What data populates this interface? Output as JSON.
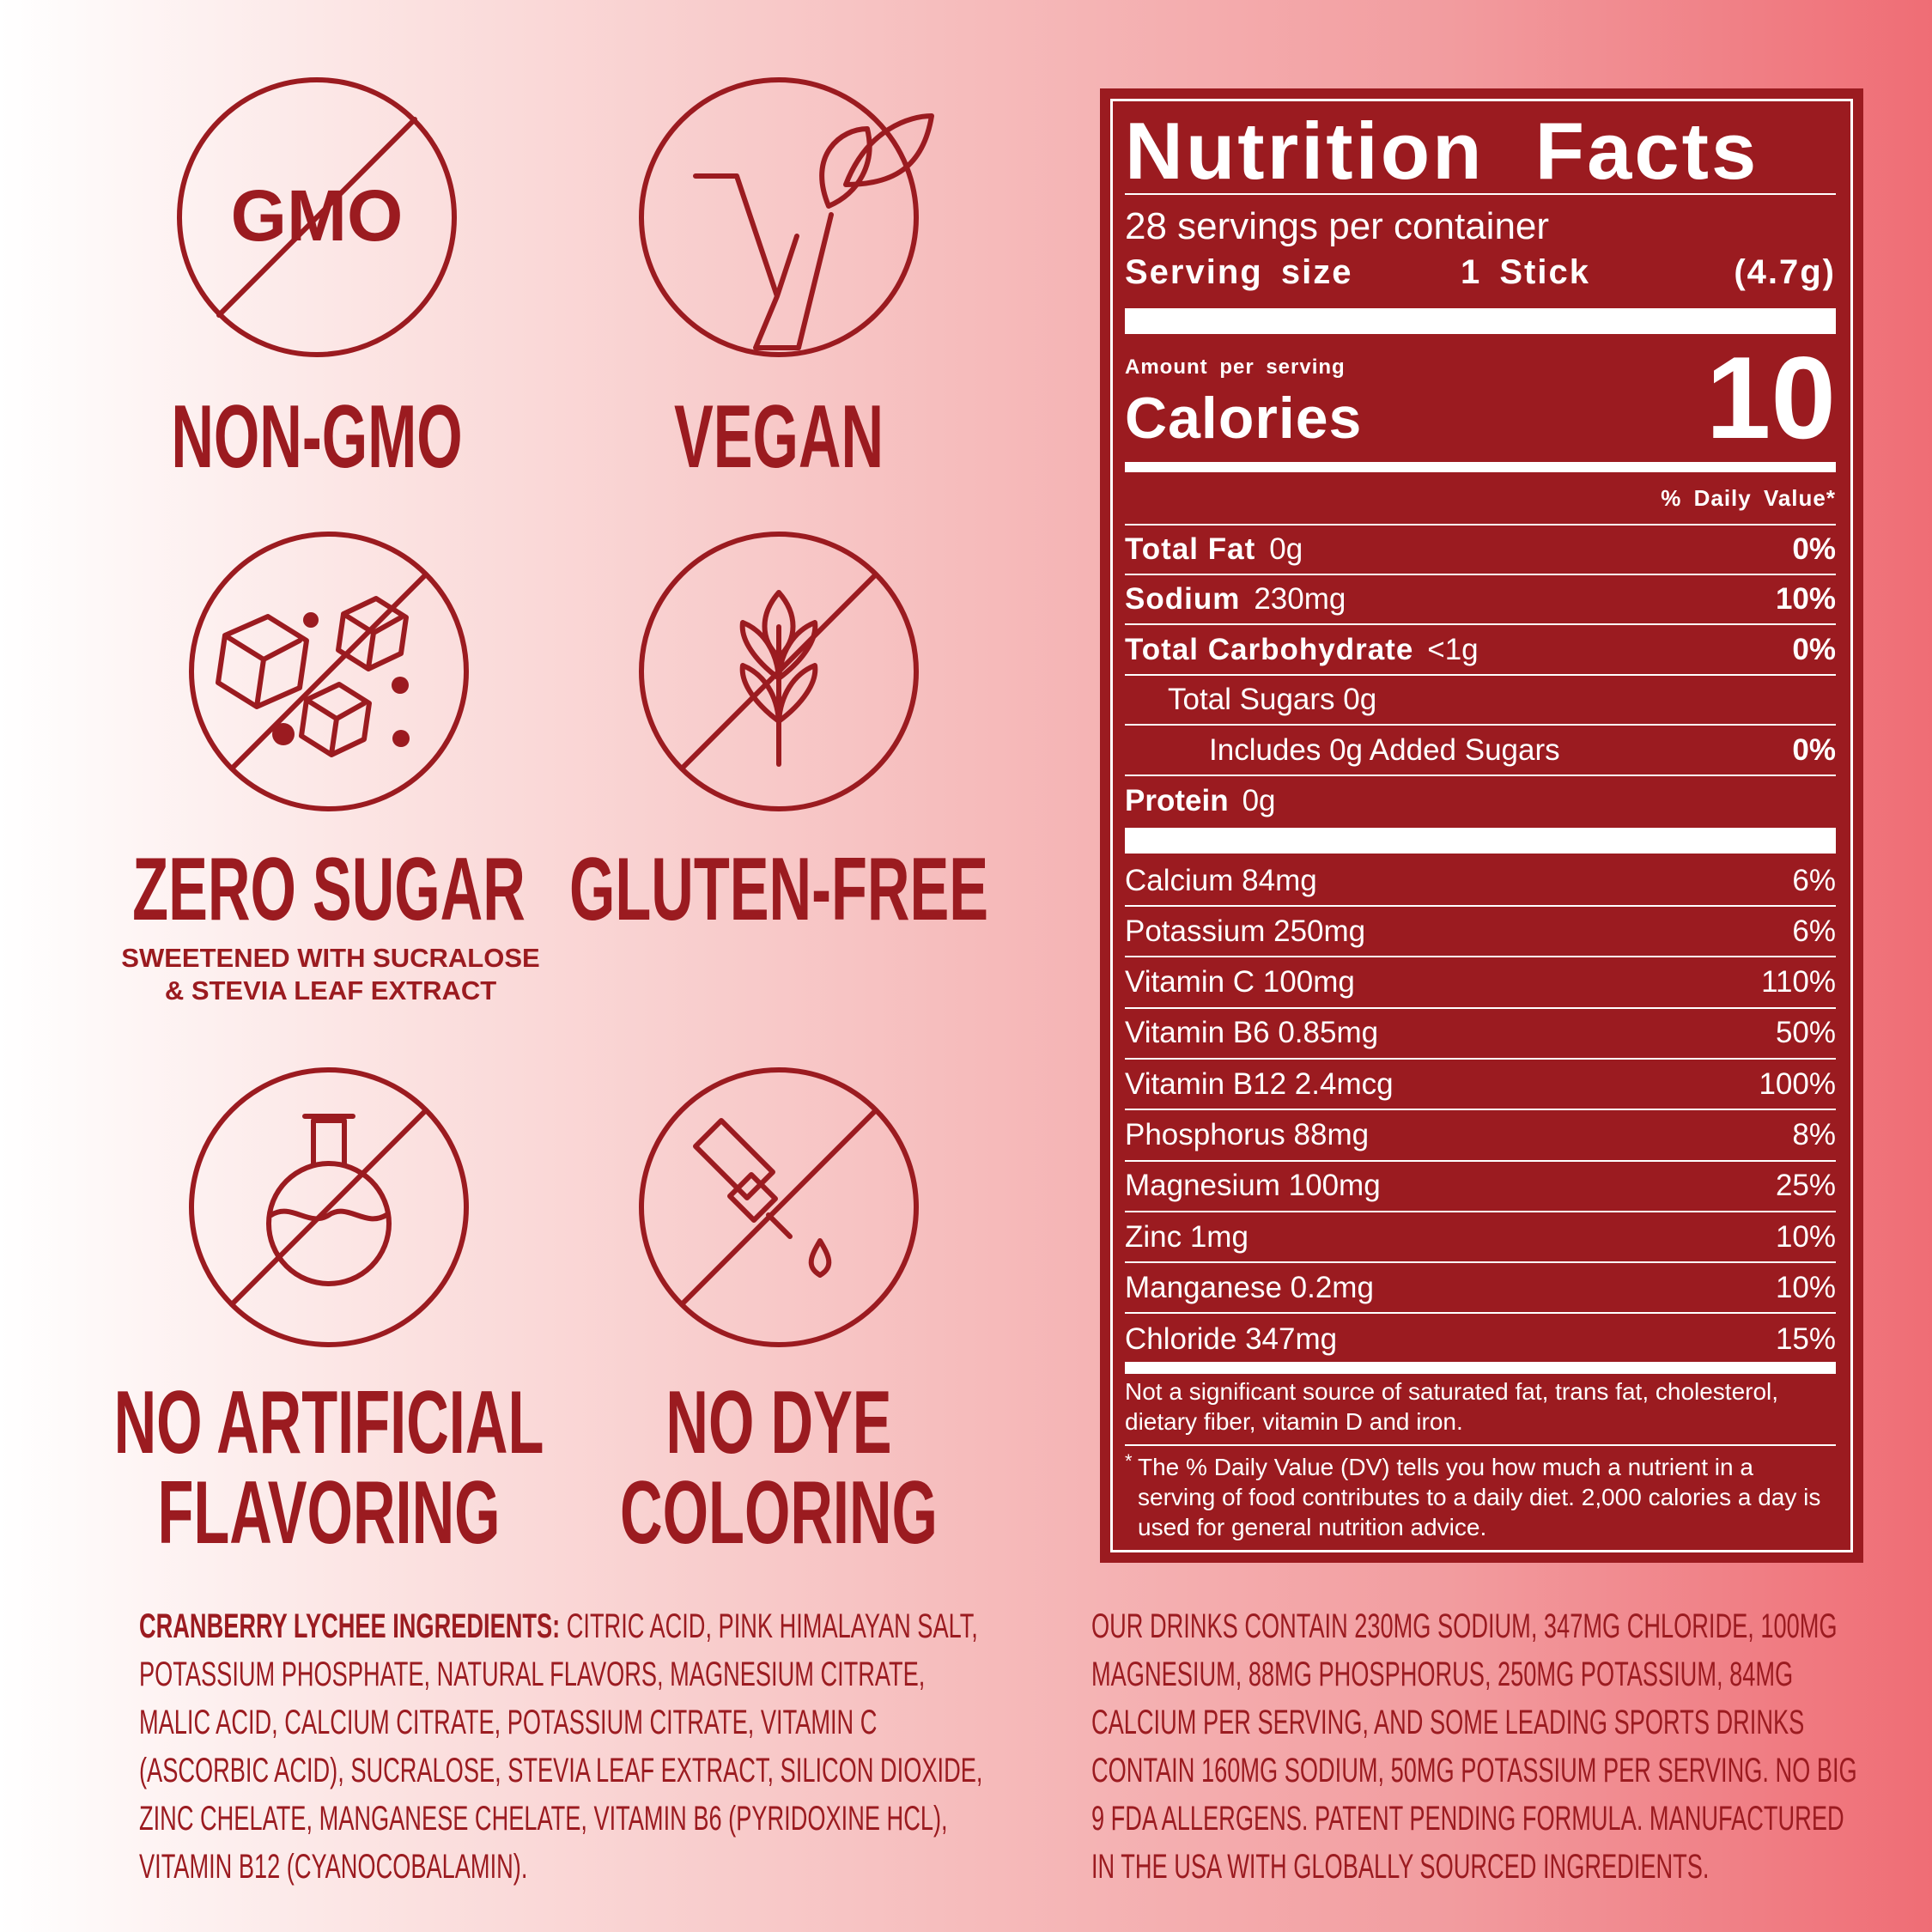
{
  "badges": [
    {
      "icon_text": "GMO",
      "title_lines": [
        "NON-GMO"
      ]
    },
    {
      "title_lines": [
        "VEGAN"
      ]
    },
    {
      "title_lines": [
        "ZERO SUGAR"
      ],
      "subtitle_lines": [
        "SWEETENED WITH SUCRALOSE",
        "& STEVIA LEAF EXTRACT"
      ]
    },
    {
      "title_lines": [
        "GLUTEN-FREE"
      ]
    },
    {
      "title_lines": [
        "NO ARTIFICIAL",
        "FLAVORING"
      ]
    },
    {
      "title_lines": [
        "NO DYE",
        "COLORING"
      ]
    }
  ],
  "nutrition": {
    "title": "Nutrition Facts",
    "servings": "28 servings per container",
    "serving_size_label": "Serving size",
    "serving_size": "1 Stick",
    "serving_weight": "(4.7g)",
    "amount_per_serving": "Amount per serving",
    "calories_label": "Calories",
    "calories": "10",
    "dv_header": "% Daily Value*",
    "nutrients": [
      {
        "name": "Total Fat",
        "amount": "0g",
        "dv": "0%"
      },
      {
        "name": "Sodium",
        "amount": "230mg",
        "dv": "10%"
      },
      {
        "name": "Total Carbohydrate",
        "amount": "<1g",
        "dv": "0%"
      }
    ],
    "sugars": "Total Sugars 0g",
    "added_sugars": {
      "text": "Includes 0g Added Sugars",
      "dv": "0%"
    },
    "protein": {
      "name": "Protein",
      "amount": "0g"
    },
    "vitamins": [
      {
        "text": "Calcium 84mg",
        "dv": "6%"
      },
      {
        "text": "Potassium 250mg",
        "dv": "6%"
      },
      {
        "text": "Vitamin C 100mg",
        "dv": "110%"
      },
      {
        "text": "Vitamin B6 0.85mg",
        "dv": "50%"
      },
      {
        "text": "Vitamin B12 2.4mcg",
        "dv": "100%"
      },
      {
        "text": "Phosphorus 88mg",
        "dv": "8%"
      },
      {
        "text": "Magnesium 100mg",
        "dv": "25%"
      },
      {
        "text": "Zinc 1mg",
        "dv": "10%"
      },
      {
        "text": "Manganese 0.2mg",
        "dv": "10%"
      },
      {
        "text": "Chloride 347mg",
        "dv": "15%"
      }
    ],
    "footnote_1": "Not a significant source of saturated fat, trans fat, cholesterol, dietary fiber, vitamin D and iron.",
    "footnote_star": "*",
    "footnote_2": "The % Daily Value (DV) tells you how much a nutrient in a serving of food contributes to a daily diet. 2,000 calories a day is used for general nutrition advice."
  },
  "ingredients": {
    "label": "CRANBERRY LYCHEE INGREDIENTS:",
    "text": "CITRIC ACID, PINK HIMALAYAN SALT, POTASSIUM PHOSPHATE, NATURAL FLAVORS, MAGNESIUM CITRATE, MALIC ACID, CALCIUM CITRATE, POTASSIUM CITRATE, VITAMIN C (ASCORBIC ACID), SUCRALOSE, STEVIA LEAF EXTRACT, SILICON DIOXIDE, ZINC CHELATE, MANGANESE CHELATE, VITAMIN B6 (PYRIDOXINE HCL), VITAMIN B12 (CYANOCOBALAMIN)."
  },
  "footer": "OUR DRINKS CONTAIN 230MG SODIUM, 347MG CHLORIDE,  100MG MAGNESIUM, 88MG PHOSPHORUS, 250MG POTASSIUM, 84MG CALCIUM PER SERVING, AND SOME LEADING SPORTS DRINKS CONTAIN 160MG SODIUM, 50MG POTASSIUM PER SERVING. NO BIG 9 FDA ALLERGENS. PATENT PENDING FORMULA. MANUFACTURED IN THE USA WITH GLOBALLY SOURCED INGREDIENTS."
}
